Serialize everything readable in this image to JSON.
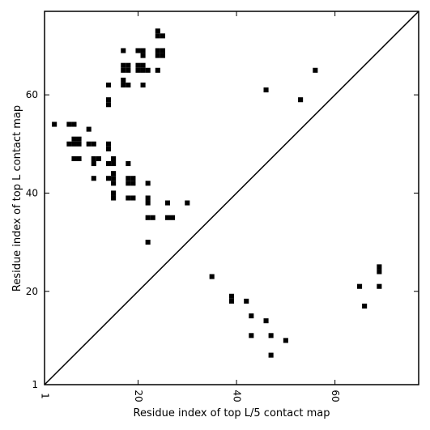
{
  "chart_data": {
    "type": "heatmap",
    "title": "",
    "xlabel": "Residue index of top L/5 contact map",
    "ylabel": "Residue index of top L contact map",
    "xlim": [
      1,
      77
    ],
    "ylim": [
      1,
      77
    ],
    "x_ticks": [
      1,
      20,
      40,
      60
    ],
    "y_ticks": [
      1,
      20,
      40,
      60
    ],
    "x_tick_labels": [
      "1",
      "20",
      "40",
      "60"
    ],
    "y_tick_labels": [
      "1",
      "20",
      "40",
      "60"
    ],
    "diagonal": true,
    "grid": false,
    "contact_color": "#000000",
    "upper_triangle_contacts": [
      [
        3,
        54
      ],
      [
        6,
        54
      ],
      [
        7,
        54
      ],
      [
        6,
        50
      ],
      [
        7,
        50
      ],
      [
        8,
        50
      ],
      [
        7,
        51
      ],
      [
        8,
        51
      ],
      [
        7,
        47
      ],
      [
        8,
        47
      ],
      [
        10,
        53
      ],
      [
        10,
        50
      ],
      [
        11,
        50
      ],
      [
        11,
        47
      ],
      [
        12,
        47
      ],
      [
        11,
        46
      ],
      [
        11,
        43
      ],
      [
        14,
        50
      ],
      [
        14,
        49
      ],
      [
        14,
        46
      ],
      [
        15,
        46
      ],
      [
        15,
        47
      ],
      [
        14,
        43
      ],
      [
        15,
        43
      ],
      [
        15,
        44
      ],
      [
        15,
        42
      ],
      [
        15,
        40
      ],
      [
        15,
        39
      ],
      [
        14,
        62
      ],
      [
        14,
        59
      ],
      [
        14,
        58
      ],
      [
        17,
        69
      ],
      [
        17,
        66
      ],
      [
        18,
        66
      ],
      [
        17,
        65
      ],
      [
        18,
        65
      ],
      [
        17,
        63
      ],
      [
        17,
        62
      ],
      [
        18,
        62
      ],
      [
        18,
        46
      ],
      [
        18,
        43
      ],
      [
        19,
        43
      ],
      [
        18,
        42
      ],
      [
        19,
        42
      ],
      [
        18,
        39
      ],
      [
        19,
        39
      ],
      [
        20,
        69
      ],
      [
        21,
        69
      ],
      [
        21,
        68
      ],
      [
        20,
        66
      ],
      [
        21,
        66
      ],
      [
        20,
        65
      ],
      [
        21,
        65
      ],
      [
        22,
        65
      ],
      [
        21,
        62
      ],
      [
        22,
        42
      ],
      [
        22,
        39
      ],
      [
        22,
        38
      ],
      [
        22,
        35
      ],
      [
        23,
        35
      ],
      [
        22,
        30
      ],
      [
        24,
        73
      ],
      [
        24,
        72
      ],
      [
        25,
        72
      ],
      [
        24,
        69
      ],
      [
        25,
        69
      ],
      [
        24,
        68
      ],
      [
        25,
        68
      ],
      [
        24,
        65
      ],
      [
        26,
        38
      ],
      [
        26,
        35
      ],
      [
        27,
        35
      ],
      [
        30,
        38
      ],
      [
        46,
        61
      ],
      [
        53,
        59
      ],
      [
        56,
        65
      ]
    ],
    "lower_triangle_contacts": [
      [
        35,
        23
      ],
      [
        39,
        19
      ],
      [
        39,
        18
      ],
      [
        42,
        18
      ],
      [
        43,
        15
      ],
      [
        43,
        11
      ],
      [
        46,
        14
      ],
      [
        47,
        11
      ],
      [
        47,
        7
      ],
      [
        50,
        10
      ],
      [
        65,
        21
      ],
      [
        66,
        17
      ],
      [
        69,
        25
      ],
      [
        69,
        24
      ],
      [
        69,
        21
      ]
    ]
  }
}
